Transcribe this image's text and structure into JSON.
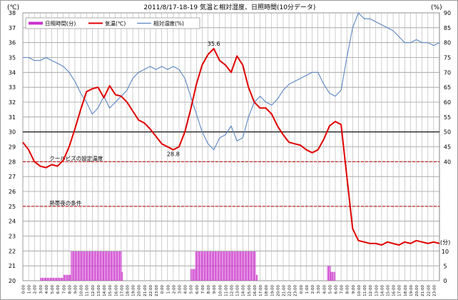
{
  "chart_data": {
    "type": "line",
    "title": "2011/8/17-18-19 気温と相対湿度、日照時間(10分データ)",
    "left_axis_unit": "(℃)",
    "right_axis_unit": "(%)",
    "sun_axis_unit": "(分)",
    "grid": true,
    "legend_position": "top-left",
    "x_ticks": [
      "0:00",
      "1:00",
      "2:00",
      "3:00",
      "4:00",
      "5:00",
      "6:00",
      "7:00",
      "8:00",
      "9:00",
      "10:00",
      "11:00",
      "12:00",
      "13:00",
      "14:00",
      "15:00",
      "16:00",
      "17:00",
      "18:00",
      "19:00",
      "20:00",
      "21:00",
      "22:00",
      "23:00",
      "0:00",
      "1:00",
      "2:00",
      "3:00",
      "4:00",
      "5:00",
      "6:00",
      "7:00",
      "8:00",
      "9:00",
      "10:00",
      "11:00",
      "12:00",
      "13:00",
      "14:00",
      "15:00",
      "16:00",
      "17:00",
      "18:00",
      "19:00",
      "20:00",
      "21:00",
      "22:00",
      "23:00",
      "0:00",
      "1:00",
      "2:00",
      "3:00",
      "4:00",
      "5:00",
      "6:00",
      "7:00",
      "8:00",
      "9:00",
      "10:00",
      "11:00",
      "12:00",
      "13:00",
      "14:00",
      "15:00",
      "16:00",
      "17:00",
      "18:00",
      "19:00",
      "20:00",
      "21:00",
      "22:00",
      "23:00"
    ],
    "y_left": {
      "min": 20,
      "max": 38,
      "ticks": [
        20,
        21,
        22,
        23,
        24,
        25,
        26,
        27,
        28,
        29,
        30,
        31,
        32,
        33,
        34,
        35,
        36,
        37,
        38
      ]
    },
    "y_right": {
      "min": 0,
      "max": 90,
      "ticks": [
        40,
        45,
        50,
        55,
        60,
        65,
        70,
        75,
        80,
        85,
        90
      ]
    },
    "y_sun": {
      "ticks": [
        0,
        5,
        10
      ]
    },
    "series": [
      {
        "name": "日照時間(分)",
        "axis": "sun",
        "kind": "bar",
        "color": "#cc33cc",
        "segments": [
          {
            "hours": [
              3.0,
              7.0
            ],
            "level": 1
          },
          {
            "hours": [
              7.0,
              8.3
            ],
            "level": 2
          },
          {
            "hours": [
              8.3,
              17.0
            ],
            "level": 10
          },
          {
            "hours": [
              17.0,
              17.3
            ],
            "level": 3
          },
          {
            "hours": [
              29.0,
              29.8
            ],
            "level": 4
          },
          {
            "hours": [
              29.8,
              40.3
            ],
            "level": 10
          },
          {
            "hours": [
              40.3,
              40.6
            ],
            "level": 2
          },
          {
            "hours": [
              52.6,
              53.2
            ],
            "level": 5
          },
          {
            "hours": [
              53.2,
              53.9
            ],
            "level": 3
          }
        ]
      },
      {
        "name": "気温(℃)",
        "axis": "left",
        "kind": "line",
        "color": "#e00000",
        "points": [
          [
            0,
            29.3
          ],
          [
            1,
            28.8
          ],
          [
            2,
            28.0
          ],
          [
            3,
            27.7
          ],
          [
            4,
            27.6
          ],
          [
            5,
            27.8
          ],
          [
            6,
            27.7
          ],
          [
            7,
            28.1
          ],
          [
            8,
            29.0
          ],
          [
            9,
            30.2
          ],
          [
            10,
            31.5
          ],
          [
            11,
            32.7
          ],
          [
            12,
            32.9
          ],
          [
            13,
            33.0
          ],
          [
            14,
            32.3
          ],
          [
            15,
            33.1
          ],
          [
            16,
            32.5
          ],
          [
            17,
            32.4
          ],
          [
            18,
            32.0
          ],
          [
            19,
            31.4
          ],
          [
            20,
            30.8
          ],
          [
            21,
            30.6
          ],
          [
            22,
            30.2
          ],
          [
            23,
            29.7
          ],
          [
            24,
            29.2
          ],
          [
            25,
            29.0
          ],
          [
            26,
            28.8
          ],
          [
            27,
            29.0
          ],
          [
            28,
            30.0
          ],
          [
            29,
            31.5
          ],
          [
            30,
            33.2
          ],
          [
            31,
            34.5
          ],
          [
            32,
            35.2
          ],
          [
            33,
            35.6
          ],
          [
            34,
            34.8
          ],
          [
            35,
            34.5
          ],
          [
            36,
            34.0
          ],
          [
            37,
            35.1
          ],
          [
            38,
            34.5
          ],
          [
            39,
            33.0
          ],
          [
            40,
            32.0
          ],
          [
            41,
            31.6
          ],
          [
            42,
            31.6
          ],
          [
            43,
            31.2
          ],
          [
            44,
            30.4
          ],
          [
            45,
            29.8
          ],
          [
            46,
            29.3
          ],
          [
            47,
            29.2
          ],
          [
            48,
            29.1
          ],
          [
            49,
            28.8
          ],
          [
            50,
            28.6
          ],
          [
            51,
            28.8
          ],
          [
            52,
            29.5
          ],
          [
            53,
            30.4
          ],
          [
            54,
            30.7
          ],
          [
            55,
            30.5
          ],
          [
            56,
            27.0
          ],
          [
            57,
            23.5
          ],
          [
            58,
            22.7
          ],
          [
            59,
            22.6
          ],
          [
            60,
            22.5
          ],
          [
            61,
            22.5
          ],
          [
            62,
            22.4
          ],
          [
            63,
            22.6
          ],
          [
            64,
            22.5
          ],
          [
            65,
            22.4
          ],
          [
            66,
            22.6
          ],
          [
            67,
            22.5
          ],
          [
            68,
            22.7
          ],
          [
            69,
            22.6
          ],
          [
            70,
            22.5
          ],
          [
            71,
            22.6
          ],
          [
            72,
            22.5
          ]
        ]
      },
      {
        "name": "相対湿度(%)",
        "axis": "right",
        "kind": "line",
        "color": "#5b86c4",
        "points": [
          [
            0,
            75
          ],
          [
            1,
            75
          ],
          [
            2,
            74
          ],
          [
            3,
            74
          ],
          [
            4,
            75
          ],
          [
            5,
            74
          ],
          [
            6,
            73
          ],
          [
            7,
            72
          ],
          [
            8,
            70
          ],
          [
            9,
            67
          ],
          [
            10,
            63
          ],
          [
            11,
            60
          ],
          [
            12,
            56
          ],
          [
            13,
            58
          ],
          [
            14,
            62
          ],
          [
            15,
            58
          ],
          [
            16,
            60
          ],
          [
            17,
            62
          ],
          [
            18,
            64
          ],
          [
            19,
            68
          ],
          [
            20,
            70
          ],
          [
            21,
            71
          ],
          [
            22,
            72
          ],
          [
            23,
            71
          ],
          [
            24,
            72
          ],
          [
            25,
            71
          ],
          [
            26,
            72
          ],
          [
            27,
            71
          ],
          [
            28,
            68
          ],
          [
            29,
            62
          ],
          [
            30,
            56
          ],
          [
            31,
            50
          ],
          [
            32,
            46
          ],
          [
            33,
            44
          ],
          [
            34,
            48
          ],
          [
            35,
            49
          ],
          [
            36,
            52
          ],
          [
            37,
            47
          ],
          [
            38,
            48
          ],
          [
            39,
            55
          ],
          [
            40,
            60
          ],
          [
            41,
            62
          ],
          [
            42,
            60
          ],
          [
            43,
            59
          ],
          [
            44,
            61
          ],
          [
            45,
            64
          ],
          [
            46,
            66
          ],
          [
            47,
            67
          ],
          [
            48,
            68
          ],
          [
            49,
            69
          ],
          [
            50,
            70
          ],
          [
            51,
            70
          ],
          [
            52,
            66
          ],
          [
            53,
            63
          ],
          [
            54,
            62
          ],
          [
            55,
            64
          ],
          [
            56,
            75
          ],
          [
            57,
            85
          ],
          [
            58,
            90
          ],
          [
            59,
            88
          ],
          [
            60,
            88
          ],
          [
            61,
            87
          ],
          [
            62,
            86
          ],
          [
            63,
            85
          ],
          [
            64,
            84
          ],
          [
            65,
            82
          ],
          [
            66,
            80
          ],
          [
            67,
            80
          ],
          [
            68,
            81
          ],
          [
            69,
            80
          ],
          [
            70,
            80
          ],
          [
            71,
            79
          ],
          [
            72,
            80
          ]
        ]
      }
    ],
    "reference_lines": [
      {
        "axis": "left",
        "value": 30,
        "style": "solid",
        "color": "#000000",
        "label": ""
      },
      {
        "axis": "left",
        "value": 28,
        "style": "dashed",
        "color": "#cc0000",
        "label": "クールビズの設定温度"
      },
      {
        "axis": "left",
        "value": 25,
        "style": "dashed",
        "color": "#cc0000",
        "label": "熱帯夜の条件"
      }
    ],
    "annotations": [
      {
        "text": "35.6",
        "x": 33.0,
        "y": 35.6,
        "axis": "left",
        "anchor": "above"
      },
      {
        "text": "28.8",
        "x": 26.0,
        "y": 28.8,
        "axis": "left",
        "anchor": "below"
      }
    ]
  }
}
